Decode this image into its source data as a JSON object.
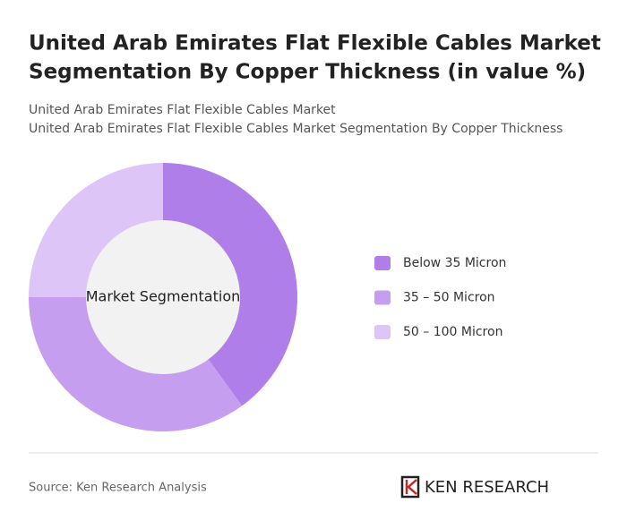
{
  "chart_data": {
    "type": "donut",
    "title": [
      "United Arab Emirates Flat Flexible Cables Market",
      "Segmentation By Copper Thickness (in value %)"
    ],
    "subtitle": [
      "United Arab Emirates Flat Flexible Cables Market",
      "United Arab Emirates Flat Flexible Cables Market Segmentation By Copper Thickness"
    ],
    "center_label": "Market Segmentation",
    "categories": [
      "Below 35 Micron",
      "35 – 50 Micron",
      "50 – 100 Micron"
    ],
    "values": [
      40,
      35,
      25
    ],
    "colors": [
      "#b07ee9",
      "#c69ef0",
      "#ddc6f7"
    ],
    "legend": "right"
  },
  "footer": {
    "source": "Source: Ken Research Analysis",
    "logo": "KEN RESEARCH"
  }
}
